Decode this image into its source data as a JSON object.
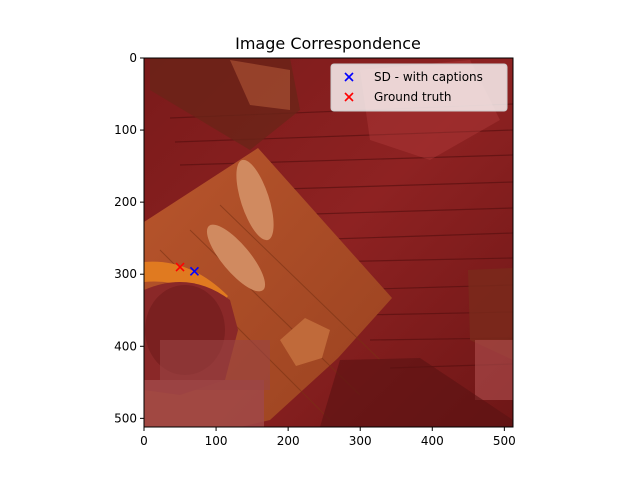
{
  "chart_data": {
    "type": "scatter",
    "title": "Image Correspondence",
    "xlabel": "",
    "ylabel": "",
    "xlim": [
      0,
      512
    ],
    "ylim": [
      512,
      0
    ],
    "xticks": [
      0,
      100,
      200,
      300,
      400,
      500
    ],
    "yticks": [
      0,
      100,
      200,
      300,
      400,
      500
    ],
    "legend_position": "top-right",
    "background": "photo of a wooden table scene with red tint",
    "series": [
      {
        "name": "SD - with captions",
        "marker": "x",
        "color": "#0000ff",
        "points": [
          {
            "x": 70,
            "y": 296
          }
        ]
      },
      {
        "name": "Ground truth",
        "marker": "x",
        "color": "#ff0000",
        "points": [
          {
            "x": 50,
            "y": 290
          }
        ]
      }
    ]
  }
}
